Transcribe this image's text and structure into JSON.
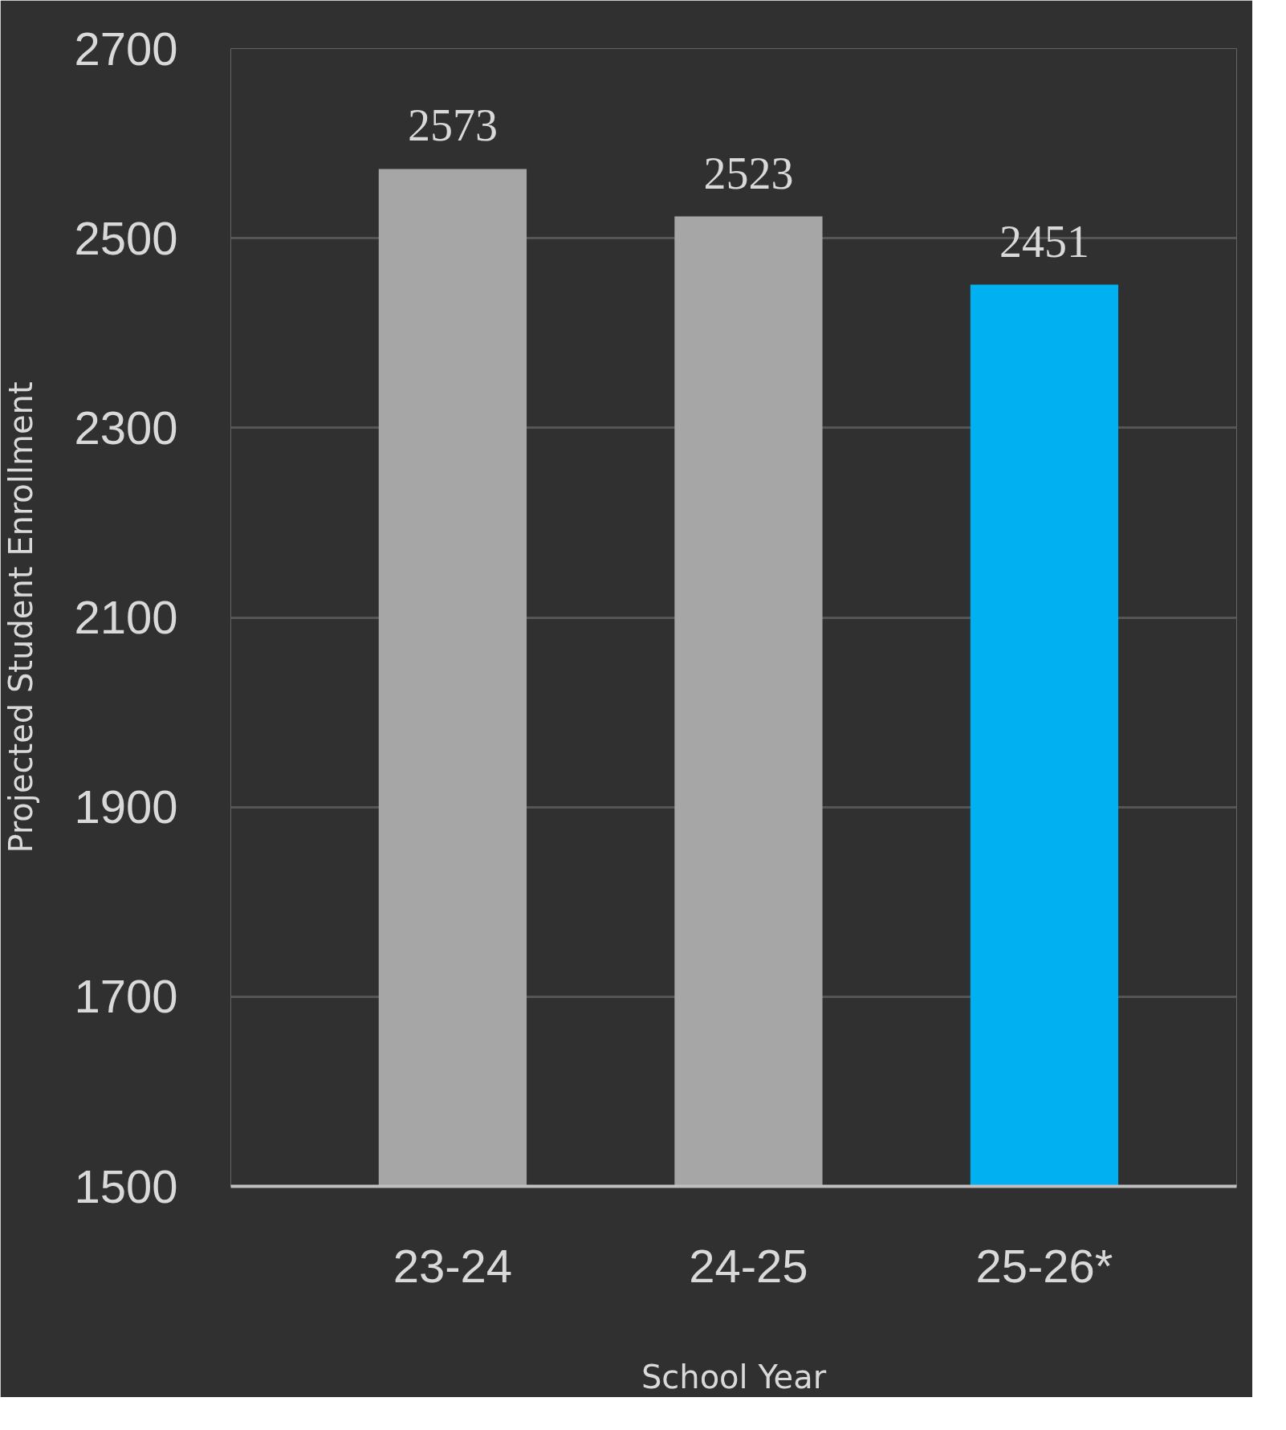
{
  "chart_data": {
    "type": "bar",
    "xlabel": "School Year",
    "ylabel": "Projected Student Enrollment",
    "categories": [
      "23-24",
      "24-25",
      "25-26*"
    ],
    "values": [
      2573,
      2523,
      2451
    ],
    "colors": [
      "#a6a6a6",
      "#a6a6a6",
      "#00b0f0"
    ],
    "ylim": [
      1500,
      2700
    ],
    "yticks": [
      1500,
      1700,
      1900,
      2100,
      2300,
      2500,
      2700
    ],
    "grid": "y",
    "data_labels": true
  }
}
